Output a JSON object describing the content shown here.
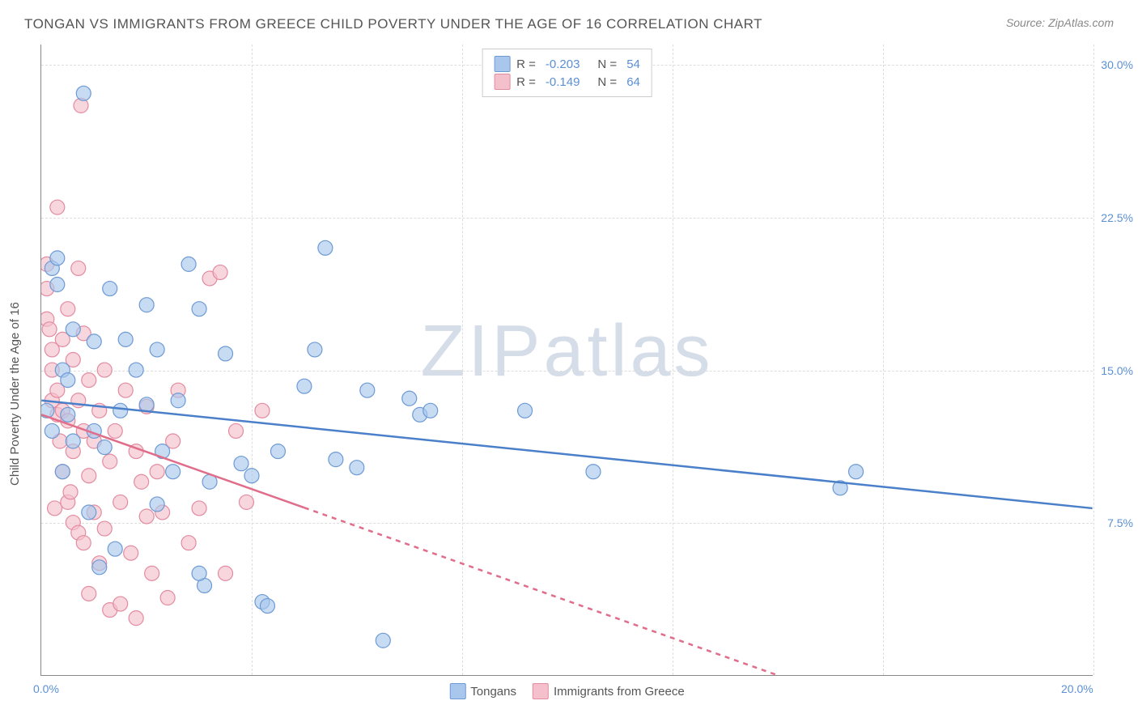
{
  "title": "TONGAN VS IMMIGRANTS FROM GREECE CHILD POVERTY UNDER THE AGE OF 16 CORRELATION CHART",
  "source": "Source: ZipAtlas.com",
  "ylabel": "Child Poverty Under the Age of 16",
  "watermark_bold": "ZIP",
  "watermark_light": "atlas",
  "chart": {
    "type": "scatter-with-regression",
    "xlim": [
      0,
      20
    ],
    "ylim": [
      0,
      31
    ],
    "x_ticks": [
      0,
      4,
      8,
      12,
      16,
      20
    ],
    "x_tick_labels": [
      "0.0%",
      "",
      "",
      "",
      "",
      "20.0%"
    ],
    "y_ticks": [
      7.5,
      15.0,
      22.5,
      30.0
    ],
    "y_tick_labels": [
      "7.5%",
      "15.0%",
      "22.5%",
      "30.0%"
    ],
    "grid_color": "#e0e0e0",
    "background_color": "#ffffff",
    "axis_color": "#888888",
    "tick_label_color": "#5b8fd6",
    "label_fontsize": 15,
    "tick_fontsize": 14,
    "title_fontsize": 17,
    "marker_radius": 9,
    "marker_stroke_width": 1.2,
    "line_width": 2.5
  },
  "series": {
    "a": {
      "label": "Tongans",
      "color_fill": "#a9c7ec",
      "color_stroke": "#6d9ad4",
      "line_color": "#4a7fc9",
      "R": "-0.203",
      "N": "54",
      "reg_start": {
        "x": 0,
        "y": 13.5
      },
      "reg_end": {
        "x": 20,
        "y": 8.2
      },
      "reg_solid_end_x": 20,
      "points": [
        [
          0.2,
          20.0
        ],
        [
          0.3,
          19.2
        ],
        [
          0.4,
          15.0
        ],
        [
          0.5,
          12.8
        ],
        [
          0.6,
          17.0
        ],
        [
          0.8,
          28.6
        ],
        [
          1.0,
          16.4
        ],
        [
          1.0,
          12.0
        ],
        [
          1.2,
          11.2
        ],
        [
          1.3,
          19.0
        ],
        [
          1.4,
          6.2
        ],
        [
          1.5,
          13.0
        ],
        [
          1.6,
          16.5
        ],
        [
          1.8,
          15.0
        ],
        [
          2.0,
          13.3
        ],
        [
          2.0,
          18.2
        ],
        [
          2.2,
          8.4
        ],
        [
          2.3,
          11.0
        ],
        [
          2.5,
          10.0
        ],
        [
          2.6,
          13.5
        ],
        [
          2.8,
          20.2
        ],
        [
          3.0,
          18.0
        ],
        [
          3.1,
          4.4
        ],
        [
          3.2,
          9.5
        ],
        [
          3.5,
          15.8
        ],
        [
          3.8,
          10.4
        ],
        [
          4.0,
          9.8
        ],
        [
          4.2,
          3.6
        ],
        [
          4.3,
          3.4
        ],
        [
          4.5,
          11.0
        ],
        [
          5.0,
          14.2
        ],
        [
          5.2,
          16.0
        ],
        [
          5.4,
          21.0
        ],
        [
          5.6,
          10.6
        ],
        [
          6.0,
          10.2
        ],
        [
          6.2,
          14.0
        ],
        [
          6.5,
          1.7
        ],
        [
          7.0,
          13.6
        ],
        [
          7.2,
          12.8
        ],
        [
          7.4,
          13.0
        ],
        [
          9.2,
          13.0
        ],
        [
          10.5,
          10.0
        ],
        [
          15.5,
          10.0
        ],
        [
          15.2,
          9.2
        ],
        [
          0.3,
          20.5
        ],
        [
          1.1,
          5.3
        ],
        [
          3.0,
          5.0
        ],
        [
          0.1,
          13.0
        ],
        [
          0.2,
          12.0
        ],
        [
          0.6,
          11.5
        ],
        [
          0.4,
          10.0
        ],
        [
          0.9,
          8.0
        ],
        [
          2.2,
          16.0
        ],
        [
          0.5,
          14.5
        ]
      ]
    },
    "b": {
      "label": "Immigrants from Greece",
      "color_fill": "#f4c0cb",
      "color_stroke": "#e38ba0",
      "line_color": "#e06d8a",
      "R": "-0.149",
      "N": "64",
      "reg_start": {
        "x": 0,
        "y": 12.8
      },
      "reg_end": {
        "x": 14,
        "y": 0
      },
      "reg_solid_end_x": 5.0,
      "points": [
        [
          0.1,
          20.2
        ],
        [
          0.1,
          19.0
        ],
        [
          0.1,
          17.5
        ],
        [
          0.15,
          17.0
        ],
        [
          0.2,
          16.0
        ],
        [
          0.2,
          15.0
        ],
        [
          0.2,
          13.5
        ],
        [
          0.3,
          23.0
        ],
        [
          0.3,
          14.0
        ],
        [
          0.3,
          12.8
        ],
        [
          0.35,
          11.5
        ],
        [
          0.4,
          16.5
        ],
        [
          0.4,
          13.0
        ],
        [
          0.4,
          10.0
        ],
        [
          0.5,
          18.0
        ],
        [
          0.5,
          12.5
        ],
        [
          0.5,
          8.5
        ],
        [
          0.55,
          9.0
        ],
        [
          0.6,
          15.5
        ],
        [
          0.6,
          11.0
        ],
        [
          0.6,
          7.5
        ],
        [
          0.7,
          20.0
        ],
        [
          0.7,
          13.5
        ],
        [
          0.7,
          7.0
        ],
        [
          0.75,
          28.0
        ],
        [
          0.8,
          16.8
        ],
        [
          0.8,
          12.0
        ],
        [
          0.8,
          6.5
        ],
        [
          0.9,
          14.5
        ],
        [
          0.9,
          9.8
        ],
        [
          0.9,
          4.0
        ],
        [
          1.0,
          11.5
        ],
        [
          1.0,
          8.0
        ],
        [
          1.1,
          13.0
        ],
        [
          1.1,
          5.5
        ],
        [
          1.2,
          15.0
        ],
        [
          1.2,
          7.2
        ],
        [
          1.3,
          10.5
        ],
        [
          1.3,
          3.2
        ],
        [
          1.4,
          12.0
        ],
        [
          1.5,
          8.5
        ],
        [
          1.5,
          3.5
        ],
        [
          1.6,
          14.0
        ],
        [
          1.7,
          6.0
        ],
        [
          1.8,
          11.0
        ],
        [
          1.8,
          2.8
        ],
        [
          1.9,
          9.5
        ],
        [
          2.0,
          13.2
        ],
        [
          2.0,
          7.8
        ],
        [
          2.1,
          5.0
        ],
        [
          2.2,
          10.0
        ],
        [
          2.3,
          8.0
        ],
        [
          2.4,
          3.8
        ],
        [
          2.5,
          11.5
        ],
        [
          2.6,
          14.0
        ],
        [
          2.8,
          6.5
        ],
        [
          3.0,
          8.2
        ],
        [
          3.2,
          19.5
        ],
        [
          3.4,
          19.8
        ],
        [
          3.5,
          5.0
        ],
        [
          3.7,
          12.0
        ],
        [
          3.9,
          8.5
        ],
        [
          4.2,
          13.0
        ],
        [
          0.25,
          8.2
        ]
      ]
    }
  },
  "legend_top_labels": {
    "r": "R =",
    "n": "N ="
  },
  "legend_bottom_labels": {
    "a": "Tongans",
    "b": "Immigrants from Greece"
  }
}
